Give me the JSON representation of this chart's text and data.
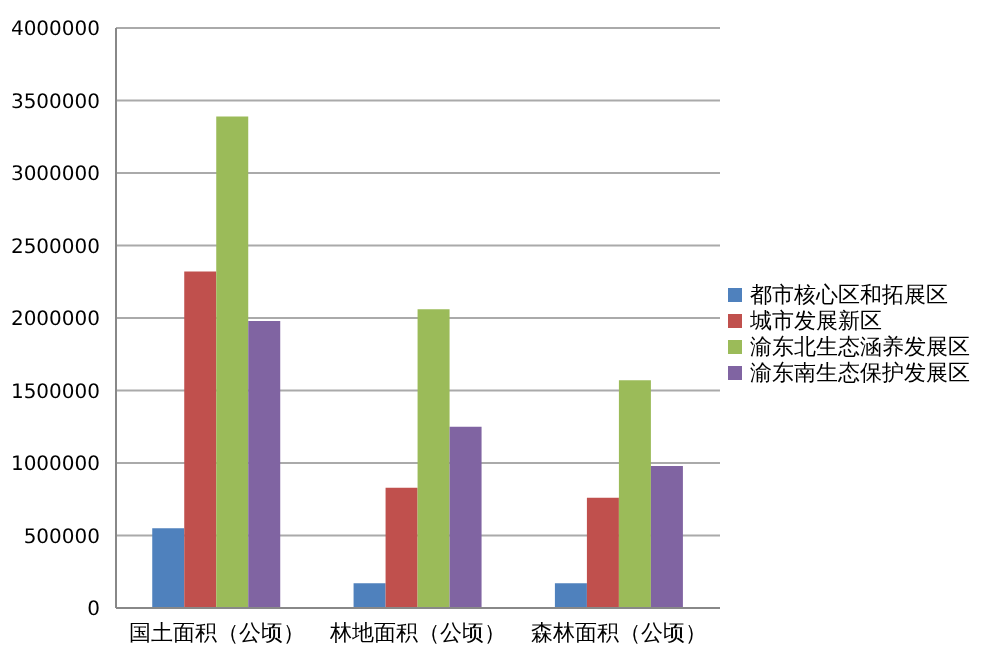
{
  "chart_data": {
    "type": "bar",
    "categories": [
      "国土面积（公顷）",
      "林地面积（公顷）",
      "森林面积（公顷）"
    ],
    "series": [
      {
        "name": "都市核心区和拓展区",
        "color": "#4f81bd",
        "values": [
          550000,
          170000,
          170000
        ]
      },
      {
        "name": "城市发展新区",
        "color": "#c0504d",
        "values": [
          2320000,
          830000,
          760000
        ]
      },
      {
        "name": "渝东北生态涵养发展区",
        "color": "#9bbb59",
        "values": [
          3390000,
          2060000,
          1570000
        ]
      },
      {
        "name": "渝东南生态保护发展区",
        "color": "#8064a2",
        "values": [
          1980000,
          1250000,
          980000
        ]
      }
    ],
    "ylim": [
      0,
      4000000
    ],
    "yticks": [
      0,
      500000,
      1000000,
      1500000,
      2000000,
      2500000,
      3000000,
      3500000,
      4000000
    ],
    "grid": "y",
    "legend": "right"
  }
}
